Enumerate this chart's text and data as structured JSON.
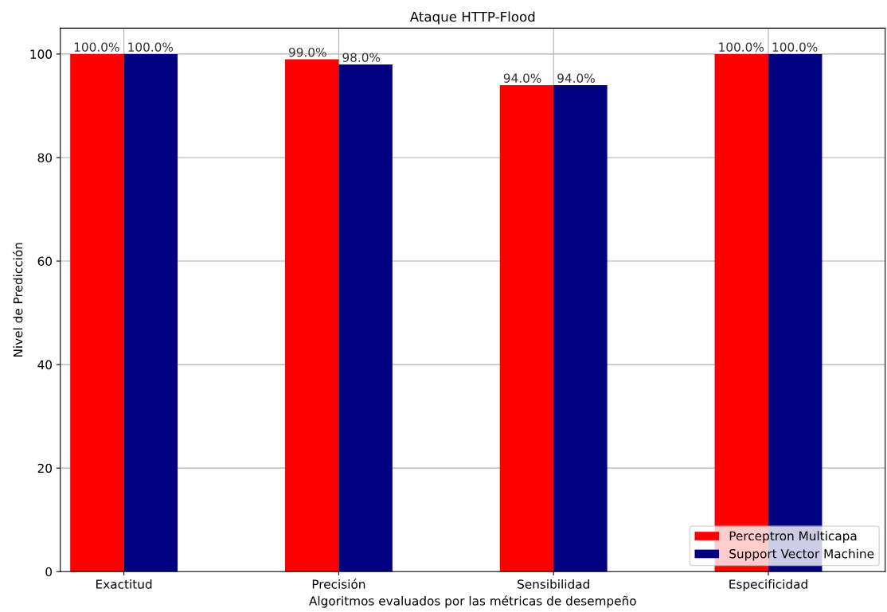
{
  "chart_data": {
    "type": "bar",
    "title": "Ataque HTTP-Flood",
    "xlabel": "Algoritmos evaluados por las métricas de desempeño",
    "ylabel": "Nivel de Predicción",
    "categories": [
      "Exactitud",
      "Precisión",
      "Sensibilidad",
      "Especificidad"
    ],
    "series": [
      {
        "name": "Perceptron Multicapa",
        "color": "#ff0000",
        "values": [
          100,
          99,
          94,
          100
        ],
        "value_labels": [
          "100.0%",
          "99.0%",
          "94.0%",
          "100.0%"
        ]
      },
      {
        "name": "Support Vector Machine",
        "color": "#000080",
        "values": [
          100,
          98,
          94,
          100
        ],
        "value_labels": [
          "100.0%",
          "98.0%",
          "94.0%",
          "100.0%"
        ]
      }
    ],
    "ylim": [
      0,
      105
    ],
    "yticks": [
      0,
      20,
      40,
      60,
      80,
      100
    ],
    "grid": true,
    "legend": "bottom right"
  }
}
